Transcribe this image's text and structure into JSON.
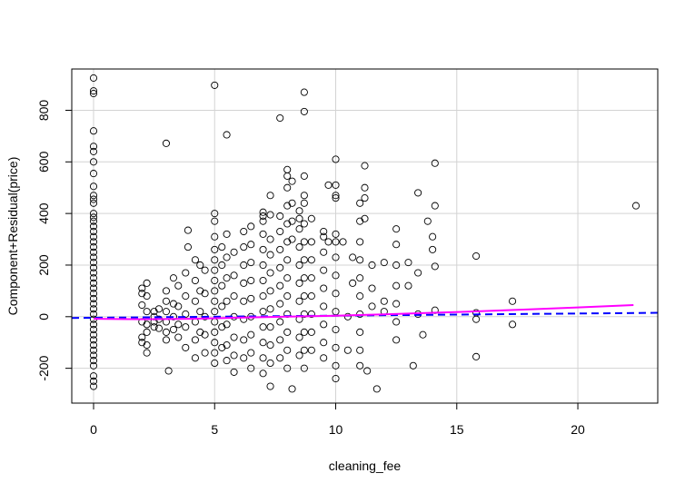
{
  "chart_data": {
    "type": "scatter",
    "xlabel": "cleaning_fee",
    "ylabel": "Component+Residual(price)",
    "xlim": [
      -0.9,
      23.3
    ],
    "ylim": [
      -335,
      960
    ],
    "x_ticks": [
      0,
      5,
      10,
      15,
      20
    ],
    "x_tick_labels": [
      "0",
      "5",
      "10",
      "15",
      "20"
    ],
    "y_ticks": [
      -200,
      0,
      200,
      400,
      600,
      800
    ],
    "y_tick_labels": [
      "-200",
      "0",
      "200",
      "400",
      "600",
      "800"
    ],
    "grid": true,
    "colors": {
      "points": "#000000",
      "linear_fit": "#0000ff",
      "smooth_fit": "#ff00ff",
      "grid": "#d3d3d3"
    },
    "linear_fit": {
      "style": "dashed",
      "x": [
        -0.9,
        23.3
      ],
      "y": [
        -5,
        15
      ]
    },
    "smooth_fit": {
      "style": "solid",
      "x": [
        0,
        2,
        4,
        6,
        8,
        10,
        12,
        14,
        16,
        18,
        20,
        22.3
      ],
      "y": [
        -8,
        -10,
        -8,
        -4,
        0,
        4,
        9,
        15,
        21,
        28,
        36,
        45
      ]
    },
    "points": [
      [
        0,
        925
      ],
      [
        0,
        875
      ],
      [
        0,
        865
      ],
      [
        0,
        720
      ],
      [
        0,
        660
      ],
      [
        0,
        640
      ],
      [
        0,
        600
      ],
      [
        0,
        555
      ],
      [
        0,
        505
      ],
      [
        0,
        470
      ],
      [
        0,
        455
      ],
      [
        0,
        440
      ],
      [
        0,
        400
      ],
      [
        0,
        385
      ],
      [
        0,
        370
      ],
      [
        0,
        350
      ],
      [
        0,
        330
      ],
      [
        0,
        310
      ],
      [
        0,
        290
      ],
      [
        0,
        270
      ],
      [
        0,
        250
      ],
      [
        0,
        230
      ],
      [
        0,
        210
      ],
      [
        0,
        190
      ],
      [
        0,
        170
      ],
      [
        0,
        150
      ],
      [
        0,
        130
      ],
      [
        0,
        110
      ],
      [
        0,
        90
      ],
      [
        0,
        70
      ],
      [
        0,
        50
      ],
      [
        0,
        30
      ],
      [
        0,
        10
      ],
      [
        0,
        -10
      ],
      [
        0,
        -30
      ],
      [
        0,
        -50
      ],
      [
        0,
        -70
      ],
      [
        0,
        -90
      ],
      [
        0,
        -110
      ],
      [
        0,
        -130
      ],
      [
        0,
        -150
      ],
      [
        0,
        -170
      ],
      [
        0,
        -190
      ],
      [
        0,
        -230
      ],
      [
        0,
        -250
      ],
      [
        0,
        -270
      ],
      [
        2,
        110
      ],
      [
        2,
        90
      ],
      [
        2,
        45
      ],
      [
        2,
        -20
      ],
      [
        2,
        -80
      ],
      [
        2,
        -100
      ],
      [
        2.2,
        130
      ],
      [
        2.2,
        80
      ],
      [
        2.2,
        20
      ],
      [
        2.2,
        -30
      ],
      [
        2.2,
        -60
      ],
      [
        2.2,
        -110
      ],
      [
        2.2,
        -140
      ],
      [
        2.5,
        20
      ],
      [
        2.5,
        0
      ],
      [
        2.5,
        -20
      ],
      [
        2.5,
        -40
      ],
      [
        2.7,
        30
      ],
      [
        2.7,
        -10
      ],
      [
        2.7,
        -45
      ],
      [
        3,
        672
      ],
      [
        3,
        100
      ],
      [
        3,
        60
      ],
      [
        3,
        20
      ],
      [
        3,
        -20
      ],
      [
        3,
        -60
      ],
      [
        3,
        -90
      ],
      [
        3.1,
        -210
      ],
      [
        3.3,
        150
      ],
      [
        3.3,
        50
      ],
      [
        3.3,
        0
      ],
      [
        3.3,
        -50
      ],
      [
        3.5,
        120
      ],
      [
        3.5,
        40
      ],
      [
        3.5,
        -30
      ],
      [
        3.5,
        -80
      ],
      [
        3.8,
        170
      ],
      [
        3.8,
        80
      ],
      [
        3.8,
        10
      ],
      [
        3.8,
        -40
      ],
      [
        3.8,
        -120
      ],
      [
        3.9,
        335
      ],
      [
        3.9,
        270
      ],
      [
        4.2,
        220
      ],
      [
        4.2,
        140
      ],
      [
        4.2,
        60
      ],
      [
        4.2,
        -20
      ],
      [
        4.2,
        -90
      ],
      [
        4.2,
        -160
      ],
      [
        4.4,
        200
      ],
      [
        4.4,
        100
      ],
      [
        4.4,
        20
      ],
      [
        4.4,
        -60
      ],
      [
        4.6,
        180
      ],
      [
        4.6,
        90
      ],
      [
        4.6,
        0
      ],
      [
        4.6,
        -70
      ],
      [
        4.6,
        -140
      ],
      [
        5,
        897
      ],
      [
        5,
        400
      ],
      [
        5,
        370
      ],
      [
        5,
        310
      ],
      [
        5,
        260
      ],
      [
        5,
        220
      ],
      [
        5,
        180
      ],
      [
        5,
        140
      ],
      [
        5,
        100
      ],
      [
        5,
        60
      ],
      [
        5,
        20
      ],
      [
        5,
        -20
      ],
      [
        5,
        -60
      ],
      [
        5,
        -100
      ],
      [
        5,
        -140
      ],
      [
        5,
        -180
      ],
      [
        5.3,
        270
      ],
      [
        5.3,
        200
      ],
      [
        5.3,
        120
      ],
      [
        5.3,
        40
      ],
      [
        5.3,
        -40
      ],
      [
        5.3,
        -120
      ],
      [
        5.5,
        705
      ],
      [
        5.5,
        320
      ],
      [
        5.5,
        230
      ],
      [
        5.5,
        150
      ],
      [
        5.5,
        60
      ],
      [
        5.5,
        -30
      ],
      [
        5.5,
        -110
      ],
      [
        5.5,
        -170
      ],
      [
        5.8,
        -215
      ],
      [
        5.8,
        250
      ],
      [
        5.8,
        160
      ],
      [
        5.8,
        80
      ],
      [
        5.8,
        0
      ],
      [
        5.8,
        -80
      ],
      [
        5.8,
        -150
      ],
      [
        6.2,
        330
      ],
      [
        6.2,
        270
      ],
      [
        6.2,
        200
      ],
      [
        6.2,
        130
      ],
      [
        6.2,
        60
      ],
      [
        6.2,
        -10
      ],
      [
        6.2,
        -90
      ],
      [
        6.2,
        -160
      ],
      [
        6.5,
        350
      ],
      [
        6.5,
        280
      ],
      [
        6.5,
        210
      ],
      [
        6.5,
        140
      ],
      [
        6.5,
        70
      ],
      [
        6.5,
        0
      ],
      [
        6.5,
        -70
      ],
      [
        6.5,
        -140
      ],
      [
        6.5,
        -200
      ],
      [
        7,
        405
      ],
      [
        7,
        390
      ],
      [
        7,
        370
      ],
      [
        7,
        320
      ],
      [
        7,
        260
      ],
      [
        7,
        200
      ],
      [
        7,
        140
      ],
      [
        7,
        80
      ],
      [
        7,
        20
      ],
      [
        7,
        -40
      ],
      [
        7,
        -100
      ],
      [
        7,
        -160
      ],
      [
        7,
        -220
      ],
      [
        7.3,
        470
      ],
      [
        7.3,
        395
      ],
      [
        7.3,
        300
      ],
      [
        7.3,
        240
      ],
      [
        7.3,
        170
      ],
      [
        7.3,
        100
      ],
      [
        7.3,
        30
      ],
      [
        7.3,
        -40
      ],
      [
        7.3,
        -110
      ],
      [
        7.3,
        -180
      ],
      [
        7.3,
        -270
      ],
      [
        7.7,
        770
      ],
      [
        7.7,
        390
      ],
      [
        7.7,
        330
      ],
      [
        7.7,
        260
      ],
      [
        7.7,
        190
      ],
      [
        7.7,
        120
      ],
      [
        7.7,
        50
      ],
      [
        7.7,
        -20
      ],
      [
        7.7,
        -90
      ],
      [
        7.7,
        -160
      ],
      [
        8,
        570
      ],
      [
        8,
        545
      ],
      [
        8,
        500
      ],
      [
        8,
        430
      ],
      [
        8,
        360
      ],
      [
        8,
        290
      ],
      [
        8,
        220
      ],
      [
        8,
        150
      ],
      [
        8,
        80
      ],
      [
        8,
        10
      ],
      [
        8,
        -60
      ],
      [
        8,
        -130
      ],
      [
        8,
        -200
      ],
      [
        8.2,
        525
      ],
      [
        8.2,
        440
      ],
      [
        8.2,
        370
      ],
      [
        8.2,
        300
      ],
      [
        8.2,
        -280
      ],
      [
        8.5,
        410
      ],
      [
        8.5,
        380
      ],
      [
        8.5,
        340
      ],
      [
        8.5,
        270
      ],
      [
        8.5,
        200
      ],
      [
        8.5,
        130
      ],
      [
        8.5,
        60
      ],
      [
        8.5,
        -10
      ],
      [
        8.5,
        -80
      ],
      [
        8.5,
        -150
      ],
      [
        8.7,
        870
      ],
      [
        8.7,
        795
      ],
      [
        8.7,
        545
      ],
      [
        8.7,
        470
      ],
      [
        8.7,
        440
      ],
      [
        8.7,
        360
      ],
      [
        8.7,
        290
      ],
      [
        8.7,
        220
      ],
      [
        8.7,
        150
      ],
      [
        8.7,
        80
      ],
      [
        8.7,
        10
      ],
      [
        8.7,
        -60
      ],
      [
        8.7,
        -130
      ],
      [
        8.7,
        -200
      ],
      [
        9,
        380
      ],
      [
        9,
        290
      ],
      [
        9,
        220
      ],
      [
        9,
        150
      ],
      [
        9,
        80
      ],
      [
        9,
        10
      ],
      [
        9,
        -60
      ],
      [
        9,
        -130
      ],
      [
        9.5,
        330
      ],
      [
        9.5,
        310
      ],
      [
        9.5,
        250
      ],
      [
        9.5,
        180
      ],
      [
        9.5,
        110
      ],
      [
        9.5,
        40
      ],
      [
        9.5,
        -30
      ],
      [
        9.5,
        -100
      ],
      [
        9.5,
        -160
      ],
      [
        9.7,
        510
      ],
      [
        9.7,
        290
      ],
      [
        10,
        610
      ],
      [
        10,
        510
      ],
      [
        10,
        470
      ],
      [
        10,
        460
      ],
      [
        10,
        320
      ],
      [
        10,
        290
      ],
      [
        10,
        230
      ],
      [
        10,
        160
      ],
      [
        10,
        90
      ],
      [
        10,
        20
      ],
      [
        10,
        -50
      ],
      [
        10,
        -120
      ],
      [
        10,
        -190
      ],
      [
        10,
        -240
      ],
      [
        10.3,
        290
      ],
      [
        10.5,
        0
      ],
      [
        10.5,
        -130
      ],
      [
        10.7,
        230
      ],
      [
        10.7,
        130
      ],
      [
        11,
        440
      ],
      [
        11,
        370
      ],
      [
        11,
        290
      ],
      [
        11,
        220
      ],
      [
        11,
        150
      ],
      [
        11,
        80
      ],
      [
        11,
        10
      ],
      [
        11,
        -60
      ],
      [
        11,
        -130
      ],
      [
        11,
        -190
      ],
      [
        11.2,
        585
      ],
      [
        11.2,
        500
      ],
      [
        11.2,
        460
      ],
      [
        11.2,
        380
      ],
      [
        11.3,
        -210
      ],
      [
        11.5,
        200
      ],
      [
        11.5,
        110
      ],
      [
        11.5,
        40
      ],
      [
        11.7,
        -280
      ],
      [
        12,
        60
      ],
      [
        12,
        20
      ],
      [
        12,
        210
      ],
      [
        12.5,
        340
      ],
      [
        12.5,
        280
      ],
      [
        12.5,
        200
      ],
      [
        12.5,
        120
      ],
      [
        12.5,
        50
      ],
      [
        12.5,
        -20
      ],
      [
        12.5,
        -90
      ],
      [
        13,
        210
      ],
      [
        13,
        120
      ],
      [
        13.2,
        -190
      ],
      [
        13.4,
        480
      ],
      [
        13.4,
        170
      ],
      [
        13.4,
        10
      ],
      [
        13.6,
        -70
      ],
      [
        13.8,
        370
      ],
      [
        14,
        310
      ],
      [
        14,
        260
      ],
      [
        14.1,
        595
      ],
      [
        14.1,
        430
      ],
      [
        14.1,
        195
      ],
      [
        14.1,
        25
      ],
      [
        15.8,
        235
      ],
      [
        15.8,
        15
      ],
      [
        15.8,
        -10
      ],
      [
        15.8,
        -155
      ],
      [
        17.3,
        60
      ],
      [
        17.3,
        -30
      ],
      [
        22.4,
        430
      ]
    ]
  }
}
